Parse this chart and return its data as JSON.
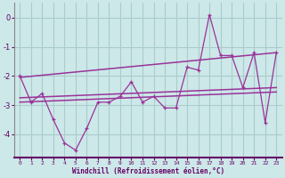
{
  "xlabel": "Windchill (Refroidissement éolien,°C)",
  "bg_color": "#cce8e8",
  "grid_color": "#aacccc",
  "line_color": "#993399",
  "label_color": "#660066",
  "x_data": [
    0,
    1,
    2,
    3,
    4,
    5,
    6,
    7,
    8,
    9,
    10,
    11,
    12,
    13,
    14,
    15,
    16,
    17,
    18,
    19,
    20,
    21,
    22,
    23
  ],
  "y_data": [
    -2.0,
    -2.9,
    -2.6,
    -3.5,
    -4.3,
    -4.55,
    -3.8,
    -2.9,
    -2.9,
    -2.7,
    -2.2,
    -2.9,
    -2.7,
    -3.1,
    -3.1,
    -1.7,
    -1.8,
    0.1,
    -1.3,
    -1.3,
    -2.4,
    -1.2,
    -3.6,
    -1.2
  ],
  "reg_lines": [
    {
      "x": [
        0,
        23
      ],
      "y": [
        -2.05,
        -1.2
      ]
    },
    {
      "x": [
        0,
        23
      ],
      "y": [
        -2.75,
        -2.4
      ]
    },
    {
      "x": [
        0,
        23
      ],
      "y": [
        -2.9,
        -2.55
      ]
    }
  ],
  "ylim": [
    -4.8,
    0.5
  ],
  "xlim": [
    -0.5,
    23.5
  ],
  "yticks": [
    0,
    -1,
    -2,
    -3,
    -4
  ],
  "xticks": [
    0,
    1,
    2,
    3,
    4,
    5,
    6,
    7,
    8,
    9,
    10,
    11,
    12,
    13,
    14,
    15,
    16,
    17,
    18,
    19,
    20,
    21,
    22,
    23
  ]
}
